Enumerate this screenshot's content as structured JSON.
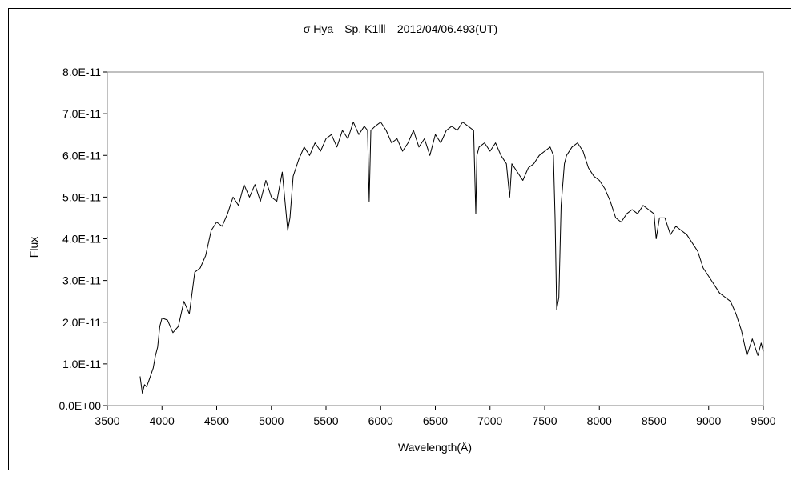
{
  "chart_data": {
    "type": "line",
    "title": "σ Hya　Sp. K1Ⅲ　2012/04/06.493(UT)",
    "xlabel": "Wavelength(Å)",
    "ylabel": "Flux",
    "xlim": [
      3500,
      9500
    ],
    "ylim": [
      0,
      8e-11
    ],
    "x_ticks": [
      "3500",
      "4000",
      "4500",
      "5000",
      "5500",
      "6000",
      "6500",
      "7000",
      "7500",
      "8000",
      "8500",
      "9000",
      "9500"
    ],
    "y_ticks": [
      "0.0E+00",
      "1.0E-11",
      "2.0E-11",
      "3.0E-11",
      "4.0E-11",
      "5.0E-11",
      "6.0E-11",
      "7.0E-11",
      "8.0E-11"
    ],
    "grid": false,
    "line_color": "#000000",
    "series": [
      {
        "x": [
          3800,
          3820,
          3840,
          3860,
          3880,
          3900,
          3920,
          3940,
          3960,
          3980,
          4000,
          4050,
          4100,
          4150,
          4200,
          4250,
          4300,
          4350,
          4400,
          4450,
          4500,
          4550,
          4600,
          4650,
          4700,
          4750,
          4800,
          4850,
          4900,
          4950,
          5000,
          5050,
          5100,
          5150,
          5170,
          5200,
          5250,
          5300,
          5350,
          5400,
          5450,
          5500,
          5550,
          5600,
          5650,
          5700,
          5750,
          5800,
          5850,
          5880,
          5895,
          5910,
          5950,
          6000,
          6050,
          6100,
          6150,
          6200,
          6250,
          6300,
          6350,
          6400,
          6450,
          6500,
          6550,
          6600,
          6650,
          6700,
          6750,
          6800,
          6850,
          6870,
          6880,
          6900,
          6950,
          7000,
          7050,
          7100,
          7150,
          7180,
          7200,
          7250,
          7300,
          7350,
          7400,
          7450,
          7500,
          7550,
          7580,
          7595,
          7610,
          7630,
          7650,
          7680,
          7700,
          7750,
          7800,
          7850,
          7900,
          7950,
          8000,
          8050,
          8100,
          8150,
          8200,
          8250,
          8300,
          8350,
          8400,
          8450,
          8500,
          8520,
          8550,
          8600,
          8650,
          8700,
          8750,
          8800,
          8850,
          8900,
          8950,
          9000,
          9050,
          9100,
          9150,
          9200,
          9250,
          9300,
          9350,
          9400,
          9450,
          9480,
          9500
        ],
        "y": [
          7e-12,
          3e-12,
          5e-12,
          4.5e-12,
          6e-12,
          7.5e-12,
          9e-12,
          1.2e-11,
          1.4e-11,
          1.9e-11,
          2.1e-11,
          2.05e-11,
          1.75e-11,
          1.9e-11,
          2.5e-11,
          2.2e-11,
          3.2e-11,
          3.3e-11,
          3.6e-11,
          4.2e-11,
          4.4e-11,
          4.3e-11,
          4.6e-11,
          5e-11,
          4.8e-11,
          5.3e-11,
          5e-11,
          5.3e-11,
          4.9e-11,
          5.4e-11,
          5e-11,
          4.9e-11,
          5.6e-11,
          4.2e-11,
          4.5e-11,
          5.5e-11,
          5.9e-11,
          6.2e-11,
          6e-11,
          6.3e-11,
          6.1e-11,
          6.4e-11,
          6.5e-11,
          6.2e-11,
          6.6e-11,
          6.4e-11,
          6.8e-11,
          6.5e-11,
          6.7e-11,
          6.6e-11,
          4.9e-11,
          6.6e-11,
          6.7e-11,
          6.8e-11,
          6.6e-11,
          6.3e-11,
          6.4e-11,
          6.1e-11,
          6.3e-11,
          6.6e-11,
          6.2e-11,
          6.4e-11,
          6e-11,
          6.5e-11,
          6.3e-11,
          6.6e-11,
          6.7e-11,
          6.6e-11,
          6.8e-11,
          6.7e-11,
          6.6e-11,
          4.6e-11,
          6e-11,
          6.2e-11,
          6.3e-11,
          6.1e-11,
          6.3e-11,
          6e-11,
          5.8e-11,
          5e-11,
          5.8e-11,
          5.6e-11,
          5.4e-11,
          5.7e-11,
          5.8e-11,
          6e-11,
          6.1e-11,
          6.2e-11,
          6e-11,
          4.5e-11,
          2.3e-11,
          2.6e-11,
          4.8e-11,
          5.8e-11,
          6e-11,
          6.2e-11,
          6.3e-11,
          6.1e-11,
          5.7e-11,
          5.5e-11,
          5.4e-11,
          5.2e-11,
          4.9e-11,
          4.5e-11,
          4.4e-11,
          4.6e-11,
          4.7e-11,
          4.6e-11,
          4.8e-11,
          4.7e-11,
          4.6e-11,
          4e-11,
          4.5e-11,
          4.5e-11,
          4.1e-11,
          4.3e-11,
          4.2e-11,
          4.1e-11,
          3.9e-11,
          3.7e-11,
          3.3e-11,
          3.1e-11,
          2.9e-11,
          2.7e-11,
          2.6e-11,
          2.5e-11,
          2.2e-11,
          1.8e-11,
          1.2e-11,
          1.6e-11,
          1.2e-11,
          1.5e-11,
          1.3e-11
        ]
      }
    ]
  }
}
